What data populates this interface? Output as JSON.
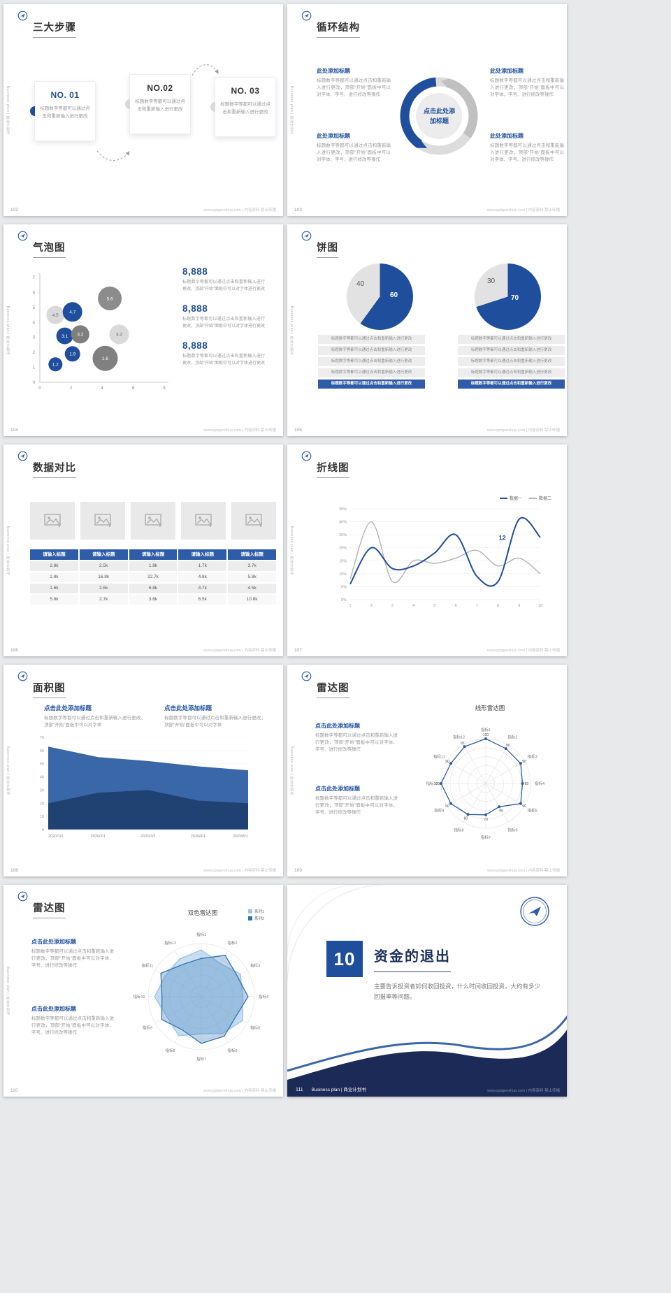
{
  "common": {
    "sidebar_text": "Business plan | 商业计划书",
    "footer_site": "www.pptgenshua.com | 内容资料 禁止传播",
    "colors": {
      "primary": "#1f4e9c",
      "primary_mid": "#2e5ca8",
      "navy": "#1b2a56",
      "light_gray": "#d9d9d9"
    }
  },
  "slides": {
    "s102": {
      "page": "102",
      "title": "三大步骤",
      "steps": [
        {
          "no": "NO. 01",
          "desc": "标题数字等都可以通过点击和重新输入进行更改"
        },
        {
          "no": "NO.02",
          "desc": "标题数字等都可以通过点击和重新输入进行更改"
        },
        {
          "no": "NO. 03",
          "desc": "标题数字等都可以通过点击和重新输入进行更改"
        }
      ]
    },
    "s103": {
      "page": "103",
      "title": "循环结构",
      "center_label": "点击此处添加标题",
      "block_heading": "此处添加标题",
      "block_body": "标题数字等都可以通过点击和重新输入进行更改，顶部“开始”面板中可以对字体、字号、进行修改等操作"
    },
    "s104": {
      "page": "104",
      "title": "气泡图",
      "stats": [
        {
          "value": "8,888",
          "desc": "标题数字等都可以通过点击和重新输入进行更改，顶部“开始”面板中可以对字体进行更改"
        },
        {
          "value": "8,888",
          "desc": "标题数字等都可以通过点击和重新输入进行更改，顶部“开始”面板中可以对字体进行更改"
        },
        {
          "value": "8,888",
          "desc": "标题数字等都可以通过点击和重新输入进行更改，顶部“开始”面板中可以对字体进行更改"
        }
      ]
    },
    "s105": {
      "page": "105",
      "title": "饼图",
      "rows": [
        "标题数字等都可以通过点击和重新输入进行更改",
        "标题数字等都可以通过点击和重新输入进行更改",
        "标题数字等都可以通过点击和重新输入进行更改",
        "标题数字等都可以通过点击和重新输入进行更改",
        "标题数字等都可以通过点击和重新输入进行更改"
      ]
    },
    "s106": {
      "page": "106",
      "title": "数据对比"
    },
    "s107": {
      "page": "107",
      "title": "折线图"
    },
    "s108": {
      "page": "108",
      "title": "面积图",
      "headers": [
        {
          "heading": "点击此处添加标题",
          "body": "标题数字等都可以通过点击和重新输入进行更改，顶部“开始”面板中可以对字体"
        },
        {
          "heading": "点击此处添加标题",
          "body": "标题数字等都可以通过点击和重新输入进行更改，顶部“开始”面板中可以对字体"
        }
      ]
    },
    "s109": {
      "page": "109",
      "title": "雷达图",
      "blocks": [
        {
          "heading": "点击此处添加标题",
          "body": "标题数字等都可以通过点击和重新输入进行更改，顶部“开始”面板中可以对字体、字号、进行修改等操作"
        },
        {
          "heading": "点击此处添加标题",
          "body": "标题数字等都可以通过点击和重新输入进行更改，顶部“开始”面板中可以对字体、字号、进行修改等操作"
        }
      ]
    },
    "s110": {
      "page": "110",
      "title": "雷达图",
      "blocks": [
        {
          "heading": "点击此处添加标题",
          "body": "标题数字等都可以通过点击和重新输入进行更改，顶部“开始”面板中可以对字体、字号、进行修改等操作"
        },
        {
          "heading": "点击此处添加标题",
          "body": "标题数字等都可以通过点击和重新输入进行更改，顶部“开始”面板中可以对字体、字号、进行修改等操作"
        }
      ]
    },
    "s111": {
      "page": "111",
      "number": "10",
      "title": "资金的退出",
      "body": "主要告诉投资者如何收回投资，什么时间收回投资，大约有多少回报率等问题。",
      "footer_label": "Business plan | 商业计划书"
    }
  },
  "chart_data": [
    {
      "id": "bubble",
      "type": "scatter",
      "xlim": [
        0,
        8
      ],
      "ylim": [
        0,
        7
      ],
      "x_ticks": [
        0,
        2,
        4,
        6,
        8
      ],
      "y_ticks": [
        0,
        1,
        2,
        3,
        4,
        5,
        6,
        7
      ],
      "points": [
        {
          "x": 1.0,
          "y": 4.5,
          "r": 13,
          "label": "4.5",
          "color": "#d9d9d9",
          "text": "#666666"
        },
        {
          "x": 2.1,
          "y": 4.7,
          "r": 14,
          "label": "4.7",
          "color": "#1f4e9c",
          "text": "#ffffff"
        },
        {
          "x": 4.5,
          "y": 5.6,
          "r": 17,
          "label": "5.6",
          "color": "#8c8c8c",
          "text": "#ffffff"
        },
        {
          "x": 1.6,
          "y": 3.1,
          "r": 12,
          "label": "3.1",
          "color": "#1f4e9c",
          "text": "#ffffff"
        },
        {
          "x": 2.6,
          "y": 3.2,
          "r": 13,
          "label": "3.2",
          "color": "#7f7f7f",
          "text": "#ffffff"
        },
        {
          "x": 5.1,
          "y": 3.2,
          "r": 14,
          "label": "3.2",
          "color": "#d9d9d9",
          "text": "#666666"
        },
        {
          "x": 2.1,
          "y": 1.9,
          "r": 11,
          "label": "1.9",
          "color": "#1f4e9c",
          "text": "#ffffff"
        },
        {
          "x": 1.0,
          "y": 1.2,
          "r": 10,
          "label": "1.2",
          "color": "#1f4e9c",
          "text": "#ffffff"
        },
        {
          "x": 4.2,
          "y": 1.6,
          "r": 18,
          "label": "1.6",
          "color": "#808080",
          "text": "#ffffff"
        }
      ]
    },
    {
      "id": "pies",
      "type": "pie",
      "pies": [
        {
          "slices": [
            {
              "label": "60",
              "value": 60,
              "color": "#1f4e9c"
            },
            {
              "label": "40",
              "value": 40,
              "color": "#e2e2e2"
            }
          ]
        },
        {
          "slices": [
            {
              "label": "70",
              "value": 70,
              "color": "#1f4e9c"
            },
            {
              "label": "30",
              "value": 30,
              "color": "#e2e2e2"
            }
          ]
        }
      ]
    },
    {
      "id": "table",
      "type": "table",
      "header": [
        "请输入标题",
        "请输入标题",
        "请输入标题",
        "请输入标题",
        "请输入标题"
      ],
      "rows": [
        [
          "2.8k",
          "2.5k",
          "1.8k",
          "1.7k",
          "3.7k"
        ],
        [
          "2.8k",
          "16.8k",
          "22.7k",
          "4.8k",
          "5.8k"
        ],
        [
          "1.6k",
          "2.6k",
          "6.8k",
          "4.7k",
          "4.5k"
        ],
        [
          "5.8k",
          "2.7k",
          "3.6k",
          "6.5k",
          "10.8k"
        ]
      ]
    },
    {
      "id": "line",
      "type": "line",
      "x": [
        1,
        2,
        3,
        4,
        5,
        6,
        7,
        8,
        9,
        10
      ],
      "ylim": [
        0,
        35
      ],
      "y_ticks": [
        "0%",
        "5%",
        "10%",
        "15%",
        "20%",
        "25%",
        "30%",
        "35%"
      ],
      "series": [
        {
          "name": "数据一",
          "color": "#1f4e9c",
          "values": [
            6,
            20,
            12,
            13,
            18,
            25,
            9,
            7,
            31,
            24
          ]
        },
        {
          "name": "数据二",
          "color": "#b3b3b3",
          "values": [
            8,
            30,
            7,
            15,
            14,
            16,
            19,
            13,
            16,
            10
          ]
        }
      ],
      "annotation": {
        "x": 8.2,
        "y": 23,
        "text": "12"
      }
    },
    {
      "id": "area",
      "type": "area",
      "categories": [
        "2020/1/1",
        "2020/2/1",
        "2020/3/1",
        "2020/4/1",
        "2020/5/1"
      ],
      "ylim": [
        0,
        70
      ],
      "y_ticks": [
        0,
        10,
        20,
        30,
        40,
        50,
        60,
        70
      ],
      "series": [
        {
          "color": "#1f4273",
          "values": [
            20,
            28,
            30,
            22,
            20
          ]
        },
        {
          "color": "#3a67a8",
          "values": [
            63,
            55,
            52,
            48,
            45
          ]
        }
      ]
    },
    {
      "id": "radar_line",
      "type": "radar",
      "title": "线形雷达图",
      "max": 100,
      "labels": [
        "指标1",
        "指标2",
        "指标3",
        "指标4",
        "指标5",
        "指标6",
        "指标7",
        "指标8",
        "指标9",
        "指标10",
        "指标11",
        "指标12"
      ],
      "series": [
        {
          "color": "#2e5ca8",
          "fill": "none",
          "markers": true,
          "show_values": true,
          "values": [
            100,
            90,
            90,
            82,
            90,
            60,
            70,
            80,
            90,
            100,
            90,
            95
          ]
        }
      ]
    },
    {
      "id": "radar_dual",
      "type": "radar",
      "title": "双色雷达图",
      "max": 100,
      "labels": [
        "指标1",
        "指标2",
        "指标3",
        "指标4",
        "指标5",
        "指标6",
        "指标7",
        "指标8",
        "指标9",
        "指标10",
        "指标11",
        "指标12"
      ],
      "series": [
        {
          "name": "系列1",
          "color": "#9dc3e6",
          "fill": "rgba(157,195,230,0.55)",
          "values": [
            88,
            72,
            85,
            78,
            90,
            80,
            70,
            85,
            75,
            88,
            78,
            82
          ]
        },
        {
          "name": "系列2",
          "color": "#2e75b6",
          "fill": "rgba(46,117,182,0.30)",
          "values": [
            72,
            90,
            78,
            88,
            75,
            86,
            88,
            72,
            86,
            74,
            88,
            70
          ]
        }
      ]
    }
  ]
}
